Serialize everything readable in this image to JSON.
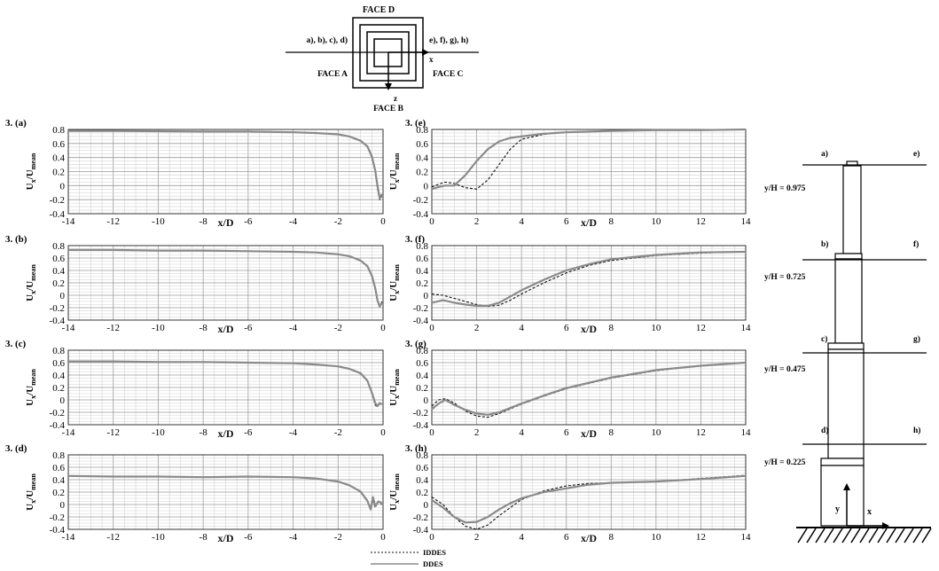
{
  "legend": [
    {
      "label": "IDDES",
      "style": "dashed",
      "color": "#111111"
    },
    {
      "label": "DDES",
      "style": "solid",
      "color": "#8a8a8a"
    }
  ],
  "schematic": {
    "face_top": "FACE D",
    "face_left": "FACE A",
    "face_right": "FACE C",
    "face_bottom": "FACE B",
    "lines_left": "a), b), c), d)",
    "lines_right": "e), f), g), h)",
    "axis_x": "x",
    "axis_z": "z"
  },
  "building": {
    "stations": [
      {
        "left": "a)",
        "right": "e)",
        "height": "y/H = 0.975"
      },
      {
        "left": "b)",
        "right": "f)",
        "height": "y/H = 0.725"
      },
      {
        "left": "c)",
        "right": "g)",
        "height": "y/H = 0.475"
      },
      {
        "left": "d)",
        "right": "h)",
        "height": "y/H = 0.225"
      }
    ],
    "axis_x": "x",
    "axis_y": "y"
  },
  "ylabel": {
    "base": "U",
    "sub1": "x",
    "sep": "/U",
    "sub2": "mean"
  },
  "xlabel": "x/D",
  "chart_data": [
    {
      "panel": "3. (a)",
      "type": "line",
      "xlim": [
        -14,
        0
      ],
      "ylim": [
        -0.4,
        0.8
      ],
      "xticks": [
        -14,
        -12,
        -10,
        -8,
        -6,
        -4,
        -2,
        0
      ],
      "yticks": [
        "0.8",
        "0.6",
        "0.4",
        "0.2",
        "0",
        "-0.2",
        "-0.4"
      ],
      "series": [
        {
          "name": "IDDES",
          "x": [
            -14,
            -12,
            -10,
            -8,
            -6,
            -4,
            -3,
            -2,
            -1.5,
            -1,
            -0.7,
            -0.5,
            -0.35,
            -0.25,
            -0.15,
            -0.05
          ],
          "y": [
            0.78,
            0.78,
            0.775,
            0.77,
            0.77,
            0.76,
            0.75,
            0.73,
            0.7,
            0.64,
            0.55,
            0.4,
            0.2,
            -0.05,
            -0.2,
            -0.15
          ]
        },
        {
          "name": "DDES",
          "x": [
            -14,
            -12,
            -10,
            -8,
            -6,
            -4,
            -3,
            -2,
            -1.5,
            -1,
            -0.7,
            -0.5,
            -0.35,
            -0.25,
            -0.15,
            -0.05
          ],
          "y": [
            0.78,
            0.78,
            0.775,
            0.77,
            0.77,
            0.76,
            0.75,
            0.73,
            0.7,
            0.64,
            0.56,
            0.42,
            0.22,
            0.0,
            -0.18,
            -0.12
          ]
        }
      ]
    },
    {
      "panel": "3. (b)",
      "type": "line",
      "xlim": [
        -14,
        0
      ],
      "ylim": [
        -0.4,
        0.8
      ],
      "xticks": [
        -14,
        -12,
        -10,
        -8,
        -6,
        -4,
        -2,
        0
      ],
      "yticks": [
        "0.8",
        "0.6",
        "0.4",
        "0.2",
        "0",
        "-0.2",
        "-0.4"
      ],
      "series": [
        {
          "name": "IDDES",
          "x": [
            -14,
            -12,
            -10,
            -8,
            -6,
            -4,
            -3,
            -2,
            -1.5,
            -1,
            -0.7,
            -0.5,
            -0.35,
            -0.25,
            -0.15,
            -0.05
          ],
          "y": [
            0.73,
            0.73,
            0.72,
            0.72,
            0.71,
            0.7,
            0.69,
            0.66,
            0.63,
            0.56,
            0.46,
            0.3,
            0.1,
            -0.1,
            -0.2,
            -0.1
          ]
        },
        {
          "name": "DDES",
          "x": [
            -14,
            -12,
            -10,
            -8,
            -6,
            -4,
            -3,
            -2,
            -1.5,
            -1,
            -0.7,
            -0.5,
            -0.35,
            -0.25,
            -0.15,
            -0.05
          ],
          "y": [
            0.73,
            0.73,
            0.72,
            0.72,
            0.71,
            0.7,
            0.69,
            0.66,
            0.63,
            0.56,
            0.47,
            0.32,
            0.12,
            -0.08,
            -0.18,
            -0.12
          ]
        }
      ]
    },
    {
      "panel": "3. (c)",
      "type": "line",
      "xlim": [
        -14,
        0
      ],
      "ylim": [
        -0.4,
        0.8
      ],
      "xticks": [
        -14,
        -12,
        -10,
        -8,
        -6,
        -4,
        -2,
        0
      ],
      "yticks": [
        "0.8",
        "0.6",
        "0.4",
        "0.2",
        "0",
        "-0.2",
        "-0.4"
      ],
      "series": [
        {
          "name": "IDDES",
          "x": [
            -14,
            -12,
            -10,
            -8,
            -6,
            -4,
            -3,
            -2,
            -1.5,
            -1,
            -0.7,
            -0.5,
            -0.35,
            -0.25,
            -0.15,
            -0.05
          ],
          "y": [
            0.62,
            0.62,
            0.61,
            0.61,
            0.6,
            0.59,
            0.57,
            0.54,
            0.5,
            0.42,
            0.3,
            0.1,
            -0.08,
            -0.12,
            -0.05,
            -0.08
          ]
        },
        {
          "name": "DDES",
          "x": [
            -14,
            -12,
            -10,
            -8,
            -6,
            -4,
            -3,
            -2,
            -1.5,
            -1,
            -0.7,
            -0.5,
            -0.35,
            -0.25,
            -0.15,
            -0.05
          ],
          "y": [
            0.62,
            0.62,
            0.61,
            0.61,
            0.6,
            0.59,
            0.57,
            0.54,
            0.5,
            0.43,
            0.31,
            0.12,
            -0.05,
            -0.1,
            -0.05,
            -0.07
          ]
        }
      ]
    },
    {
      "panel": "3. (d)",
      "type": "line",
      "xlim": [
        -14,
        0
      ],
      "ylim": [
        -0.4,
        0.8
      ],
      "xticks": [
        -14,
        -12,
        -10,
        -8,
        -6,
        -4,
        -2,
        0
      ],
      "yticks": [
        "0.8",
        "0.6",
        "0.4",
        "0.2",
        "0",
        "-0.2",
        "-0.4"
      ],
      "series": [
        {
          "name": "IDDES",
          "x": [
            -14,
            -12,
            -10,
            -8,
            -6,
            -4,
            -3,
            -2,
            -1.5,
            -1,
            -0.7,
            -0.55,
            -0.45,
            -0.35,
            -0.2,
            -0.05
          ],
          "y": [
            0.46,
            0.45,
            0.45,
            0.44,
            0.45,
            0.44,
            0.42,
            0.37,
            0.31,
            0.2,
            0.05,
            -0.05,
            0.05,
            -0.05,
            0.05,
            0.0
          ]
        },
        {
          "name": "DDES",
          "x": [
            -14,
            -12,
            -10,
            -8,
            -6,
            -4,
            -3,
            -2,
            -1.5,
            -1,
            -0.7,
            -0.55,
            -0.45,
            -0.35,
            -0.2,
            -0.05
          ],
          "y": [
            0.46,
            0.45,
            0.45,
            0.44,
            0.45,
            0.44,
            0.42,
            0.37,
            0.31,
            0.21,
            0.06,
            -0.08,
            0.12,
            -0.02,
            0.05,
            0.02
          ]
        }
      ]
    },
    {
      "panel": "3. (e)",
      "type": "line",
      "xlim": [
        0,
        14
      ],
      "ylim": [
        -0.4,
        0.8
      ],
      "xticks": [
        0,
        2,
        4,
        6,
        8,
        10,
        12,
        14
      ],
      "yticks": [
        "0.8",
        "0.6",
        "0.4",
        "0.2",
        "0",
        "-0.2",
        "-0.4"
      ],
      "series": [
        {
          "name": "IDDES",
          "x": [
            0,
            0.3,
            0.6,
            1.0,
            1.5,
            2.0,
            2.5,
            3.0,
            3.5,
            4.0,
            5,
            6,
            8,
            10,
            12,
            14
          ],
          "y": [
            -0.02,
            0.02,
            0.05,
            0.03,
            -0.03,
            -0.05,
            0.08,
            0.3,
            0.52,
            0.66,
            0.73,
            0.76,
            0.78,
            0.79,
            0.79,
            0.8
          ]
        },
        {
          "name": "DDES",
          "x": [
            0,
            0.3,
            0.6,
            1.0,
            1.5,
            2.0,
            2.5,
            3.0,
            3.5,
            4.0,
            5,
            6,
            8,
            10,
            12,
            14
          ],
          "y": [
            -0.05,
            -0.02,
            0.0,
            0.0,
            0.15,
            0.35,
            0.52,
            0.63,
            0.68,
            0.7,
            0.74,
            0.76,
            0.78,
            0.79,
            0.79,
            0.8
          ]
        }
      ]
    },
    {
      "panel": "3. (f)",
      "type": "line",
      "xlim": [
        0,
        14
      ],
      "ylim": [
        -0.4,
        0.8
      ],
      "xticks": [
        0,
        2,
        4,
        6,
        8,
        10,
        12,
        14
      ],
      "yticks": [
        "0.8",
        "0.6",
        "0.4",
        "0.2",
        "0",
        "-0.2",
        "-0.4"
      ],
      "series": [
        {
          "name": "IDDES",
          "x": [
            0,
            0.5,
            1,
            1.5,
            2,
            2.5,
            3,
            3.5,
            4,
            5,
            6,
            7,
            8,
            10,
            12,
            14
          ],
          "y": [
            0.02,
            0.0,
            -0.05,
            -0.1,
            -0.15,
            -0.18,
            -0.16,
            -0.08,
            0.02,
            0.2,
            0.36,
            0.48,
            0.56,
            0.64,
            0.68,
            0.7
          ]
        },
        {
          "name": "DDES",
          "x": [
            0,
            0.5,
            1,
            1.5,
            2,
            2.5,
            3,
            3.5,
            4,
            5,
            6,
            7,
            8,
            10,
            12,
            14
          ],
          "y": [
            -0.12,
            -0.08,
            -0.12,
            -0.15,
            -0.17,
            -0.17,
            -0.12,
            -0.02,
            0.08,
            0.25,
            0.4,
            0.5,
            0.58,
            0.65,
            0.69,
            0.7
          ]
        }
      ]
    },
    {
      "panel": "3. (g)",
      "type": "line",
      "xlim": [
        0,
        14
      ],
      "ylim": [
        -0.4,
        0.8
      ],
      "xticks": [
        0,
        2,
        4,
        6,
        8,
        10,
        12,
        14
      ],
      "yticks": [
        "0.8",
        "0.6",
        "0.4",
        "0.2",
        "0",
        "-0.2",
        "-0.4"
      ],
      "series": [
        {
          "name": "IDDES",
          "x": [
            0,
            0.3,
            0.6,
            1.0,
            1.5,
            2.0,
            2.5,
            3.0,
            4,
            5,
            6,
            8,
            10,
            12,
            14
          ],
          "y": [
            -0.1,
            0.0,
            0.02,
            -0.05,
            -0.18,
            -0.26,
            -0.28,
            -0.22,
            -0.07,
            0.06,
            0.18,
            0.35,
            0.47,
            0.55,
            0.6
          ]
        },
        {
          "name": "DDES",
          "x": [
            0,
            0.3,
            0.6,
            1.0,
            1.5,
            2.0,
            2.5,
            3.0,
            4,
            5,
            6,
            8,
            10,
            12,
            14
          ],
          "y": [
            -0.15,
            -0.06,
            0.0,
            -0.08,
            -0.16,
            -0.22,
            -0.24,
            -0.2,
            -0.06,
            0.07,
            0.19,
            0.36,
            0.48,
            0.55,
            0.6
          ]
        }
      ]
    },
    {
      "panel": "3. (h)",
      "type": "line",
      "xlim": [
        0,
        14
      ],
      "ylim": [
        -0.4,
        0.8
      ],
      "xticks": [
        0,
        2,
        4,
        6,
        8,
        10,
        12,
        14
      ],
      "yticks": [
        "0.8",
        "0.6",
        "0.4",
        "0.2",
        "0",
        "-0.2",
        "-0.4"
      ],
      "series": [
        {
          "name": "IDDES",
          "x": [
            0,
            0.5,
            1.0,
            1.5,
            2.0,
            2.5,
            3.0,
            3.5,
            4,
            5,
            6,
            7,
            8,
            10,
            12,
            14
          ],
          "y": [
            0.12,
            0.0,
            -0.2,
            -0.35,
            -0.4,
            -0.33,
            -0.18,
            -0.05,
            0.08,
            0.22,
            0.3,
            0.34,
            0.35,
            0.37,
            0.42,
            0.47
          ]
        },
        {
          "name": "DDES",
          "x": [
            0,
            0.5,
            1.0,
            1.5,
            2.0,
            2.5,
            3.0,
            3.5,
            4,
            5,
            6,
            7,
            8,
            10,
            12,
            14
          ],
          "y": [
            0.07,
            -0.05,
            -0.2,
            -0.29,
            -0.28,
            -0.2,
            -0.08,
            0.02,
            0.1,
            0.2,
            0.26,
            0.32,
            0.35,
            0.37,
            0.41,
            0.46
          ]
        }
      ]
    }
  ]
}
